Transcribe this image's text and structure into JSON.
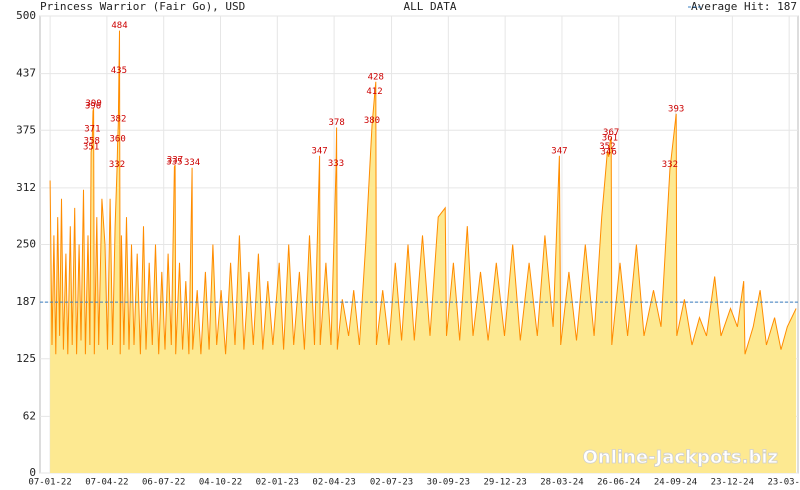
{
  "chart_data": {
    "type": "area",
    "title": "Princess Warrior (Fair Go), USD",
    "subtitle": "ALL DATA",
    "average_label": "Average Hit: 187",
    "average": 187,
    "average_color": "#3a7fc1",
    "watermark": "Online-Jackpots.biz",
    "color": "#ff8c00",
    "fill": "#fde991",
    "label_color": "#cc0000",
    "grid": true,
    "xlim": [
      "2021-12-22",
      "2025-04-06"
    ],
    "xticks": [
      {
        "value": "2022-01-07",
        "label": "07-01-22"
      },
      {
        "value": "2022-04-07",
        "label": "07-04-22"
      },
      {
        "value": "2022-07-06",
        "label": "06-07-22"
      },
      {
        "value": "2022-10-04",
        "label": "04-10-22"
      },
      {
        "value": "2023-01-02",
        "label": "02-01-23"
      },
      {
        "value": "2023-04-02",
        "label": "02-04-23"
      },
      {
        "value": "2023-07-02",
        "label": "02-07-23"
      },
      {
        "value": "2023-09-30",
        "label": "30-09-23"
      },
      {
        "value": "2023-12-29",
        "label": "29-12-23"
      },
      {
        "value": "2024-03-28",
        "label": "28-03-24"
      },
      {
        "value": "2024-06-26",
        "label": "26-06-24"
      },
      {
        "value": "2024-09-24",
        "label": "24-09-24"
      },
      {
        "value": "2024-12-23",
        "label": "23-12-24"
      },
      {
        "value": "2025-03-23",
        "label": "23-03-25"
      }
    ],
    "ylim": [
      0,
      500
    ],
    "yticks": [
      0,
      62,
      125,
      187,
      250,
      312,
      375,
      437,
      500
    ],
    "x": [
      "2022-01-07",
      "2022-01-10",
      "2022-01-13",
      "2022-01-16",
      "2022-01-19",
      "2022-01-22",
      "2022-01-25",
      "2022-01-28",
      "2022-02-01",
      "2022-02-04",
      "2022-02-08",
      "2022-02-11",
      "2022-02-15",
      "2022-02-18",
      "2022-02-22",
      "2022-02-25",
      "2022-03-01",
      "2022-03-04",
      "2022-03-08",
      "2022-03-11",
      "2022-03-13",
      "2022-03-14",
      "2022-03-15",
      "2022-03-16",
      "2022-03-17",
      "2022-03-18",
      "2022-03-22",
      "2022-03-25",
      "2022-03-30",
      "2022-04-04",
      "2022-04-08",
      "2022-04-12",
      "2022-04-16",
      "2022-04-20",
      "2022-04-23",
      "2022-04-24",
      "2022-04-25",
      "2022-04-26",
      "2022-04-27",
      "2022-04-28",
      "2022-04-30",
      "2022-05-04",
      "2022-05-08",
      "2022-05-12",
      "2022-05-16",
      "2022-05-20",
      "2022-05-25",
      "2022-05-30",
      "2022-06-04",
      "2022-06-08",
      "2022-06-13",
      "2022-06-18",
      "2022-06-23",
      "2022-06-28",
      "2022-07-03",
      "2022-07-08",
      "2022-07-13",
      "2022-07-18",
      "2022-07-23",
      "2022-07-24",
      "2022-07-25",
      "2022-07-31",
      "2022-08-05",
      "2022-08-10",
      "2022-08-15",
      "2022-08-20",
      "2022-08-21",
      "2022-08-28",
      "2022-09-03",
      "2022-09-10",
      "2022-09-16",
      "2022-09-22",
      "2022-09-28",
      "2022-10-05",
      "2022-10-12",
      "2022-10-20",
      "2022-10-27",
      "2022-11-03",
      "2022-11-10",
      "2022-11-18",
      "2022-11-25",
      "2022-12-03",
      "2022-12-10",
      "2022-12-18",
      "2022-12-26",
      "2023-01-05",
      "2023-01-12",
      "2023-01-20",
      "2023-01-28",
      "2023-02-06",
      "2023-02-14",
      "2023-02-22",
      "2023-03-02",
      "2023-03-10",
      "2023-03-11",
      "2023-03-20",
      "2023-03-28",
      "2023-04-05",
      "2023-04-06",
      "2023-04-07",
      "2023-04-15",
      "2023-04-25",
      "2023-05-03",
      "2023-05-12",
      "2023-05-22",
      "2023-06-01",
      "2023-06-05",
      "2023-06-07",
      "2023-06-08",
      "2023-06-18",
      "2023-06-28",
      "2023-07-08",
      "2023-07-18",
      "2023-07-28",
      "2023-08-07",
      "2023-08-20",
      "2023-09-01",
      "2023-09-14",
      "2023-09-25",
      "2023-09-27",
      "2023-10-08",
      "2023-10-18",
      "2023-10-30",
      "2023-11-08",
      "2023-11-20",
      "2023-12-02",
      "2023-12-15",
      "2023-12-28",
      "2024-01-10",
      "2024-01-22",
      "2024-02-05",
      "2024-02-18",
      "2024-03-01",
      "2024-03-14",
      "2024-03-24",
      "2024-03-26",
      "2024-04-08",
      "2024-04-20",
      "2024-05-04",
      "2024-05-18",
      "2024-05-30",
      "2024-06-08",
      "2024-06-10",
      "2024-06-12",
      "2024-06-14",
      "2024-06-15",
      "2024-06-28",
      "2024-07-10",
      "2024-07-24",
      "2024-08-05",
      "2024-08-20",
      "2024-09-01",
      "2024-09-15",
      "2024-09-25",
      "2024-09-26",
      "2024-10-08",
      "2024-10-20",
      "2024-11-01",
      "2024-11-12",
      "2024-11-25",
      "2024-12-05",
      "2024-12-20",
      "2024-12-31",
      "2025-01-10",
      "2025-01-12",
      "2025-01-25",
      "2025-02-05",
      "2025-02-15",
      "2025-02-28",
      "2025-03-10",
      "2025-03-20",
      "2025-04-03"
    ],
    "values": [
      320,
      140,
      260,
      130,
      280,
      150,
      300,
      135,
      240,
      130,
      270,
      140,
      290,
      130,
      250,
      145,
      310,
      130,
      260,
      140,
      351,
      358,
      371,
      396,
      399,
      130,
      280,
      140,
      300,
      250,
      135,
      300,
      140,
      270,
      332,
      360,
      382,
      435,
      484,
      130,
      260,
      140,
      280,
      135,
      250,
      140,
      240,
      130,
      270,
      135,
      230,
      140,
      250,
      130,
      220,
      135,
      240,
      140,
      335,
      337,
      130,
      230,
      135,
      210,
      130,
      334,
      135,
      200,
      130,
      220,
      135,
      250,
      140,
      200,
      130,
      230,
      140,
      260,
      135,
      220,
      140,
      240,
      135,
      210,
      140,
      230,
      135,
      250,
      140,
      220,
      135,
      260,
      140,
      347,
      140,
      230,
      140,
      333,
      378,
      135,
      190,
      150,
      200,
      140,
      250,
      380,
      412,
      428,
      140,
      200,
      140,
      230,
      145,
      250,
      145,
      260,
      150,
      280,
      290,
      150,
      230,
      145,
      270,
      150,
      220,
      145,
      230,
      150,
      250,
      145,
      230,
      150,
      260,
      160,
      347,
      140,
      220,
      145,
      250,
      150,
      280,
      352,
      346,
      361,
      367,
      140,
      230,
      150,
      250,
      150,
      200,
      160,
      332,
      393,
      150,
      190,
      140,
      170,
      150,
      215,
      150,
      180,
      160,
      210,
      130,
      160,
      200,
      140,
      170,
      135,
      160,
      180
    ],
    "value_labels": [
      null,
      null,
      null,
      null,
      null,
      null,
      null,
      null,
      null,
      null,
      null,
      null,
      null,
      null,
      null,
      null,
      null,
      null,
      null,
      null,
      "351",
      "358",
      "371",
      "396",
      "399",
      null,
      null,
      null,
      null,
      null,
      null,
      null,
      null,
      null,
      "332",
      "360",
      "382",
      "435",
      "484",
      null,
      null,
      null,
      null,
      null,
      null,
      null,
      null,
      null,
      null,
      null,
      null,
      null,
      null,
      null,
      null,
      null,
      null,
      null,
      "335",
      "337",
      null,
      null,
      null,
      null,
      null,
      "334",
      null,
      null,
      null,
      null,
      null,
      null,
      null,
      null,
      null,
      null,
      null,
      null,
      null,
      null,
      null,
      null,
      null,
      null,
      null,
      null,
      null,
      null,
      null,
      null,
      null,
      null,
      null,
      "347",
      null,
      null,
      null,
      "333",
      "378",
      null,
      null,
      null,
      null,
      null,
      null,
      "380",
      "412",
      "428",
      null,
      null,
      null,
      null,
      null,
      null,
      null,
      null,
      null,
      null,
      null,
      null,
      null,
      null,
      null,
      null,
      null,
      null,
      null,
      null,
      null,
      null,
      null,
      null,
      null,
      null,
      "347",
      null,
      null,
      null,
      null,
      null,
      null,
      "352",
      "346",
      "361",
      "367",
      null,
      null,
      null,
      null,
      null,
      null,
      null,
      "332",
      "393",
      null,
      null,
      null,
      null,
      null,
      null,
      null,
      null,
      null,
      null,
      null,
      null,
      null,
      null,
      null,
      null,
      null,
      null
    ]
  }
}
